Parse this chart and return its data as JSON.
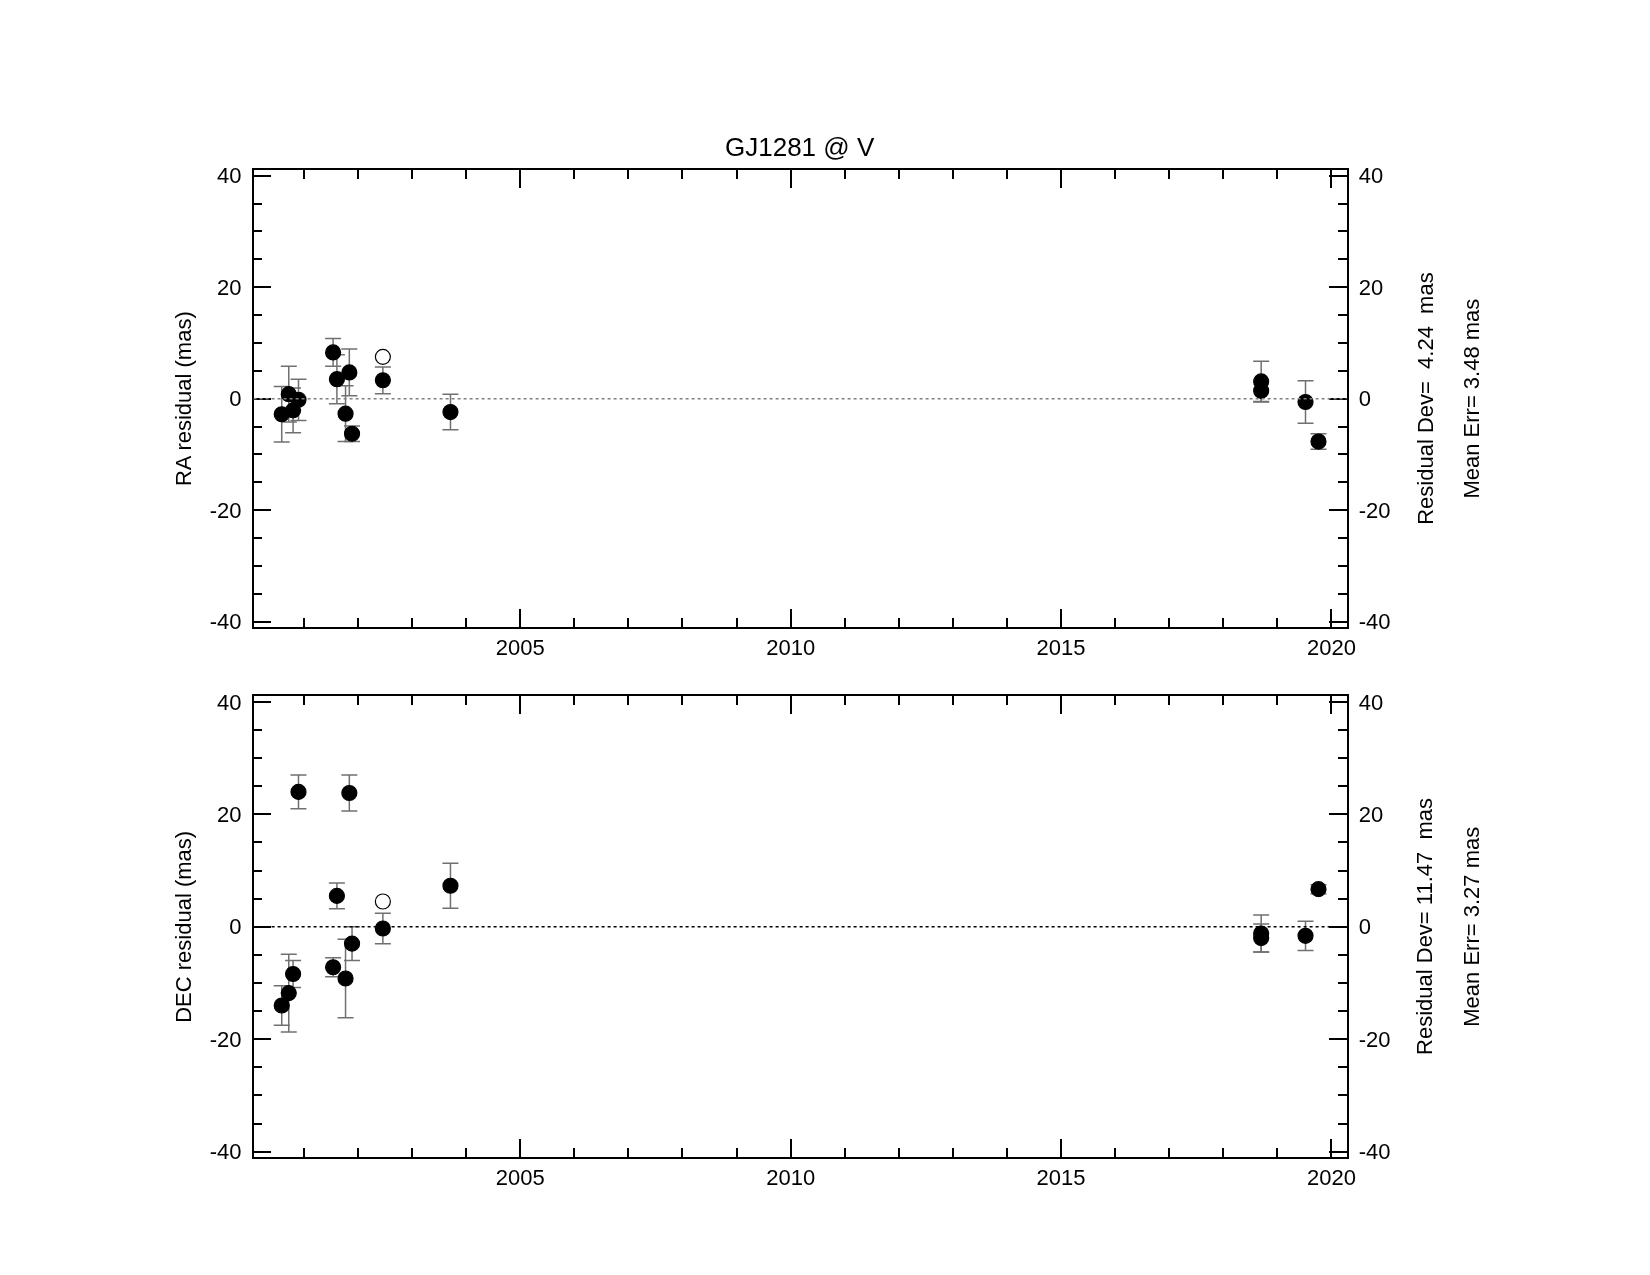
{
  "chart_data": [
    {
      "type": "scatter",
      "title": "GJ1281 @ V",
      "ylabel": "RA residual (mas)",
      "xlim": [
        2000.07,
        2020.28
      ],
      "xticks": [
        {
          "value": 2001,
          "label": null
        },
        {
          "value": 2002,
          "label": null
        },
        {
          "value": 2003,
          "label": null
        },
        {
          "value": 2004,
          "label": null
        },
        2005,
        {
          "value": 2006,
          "label": null
        },
        {
          "value": 2007,
          "label": null
        },
        {
          "value": 2008,
          "label": null
        },
        {
          "value": 2009,
          "label": null
        },
        2010,
        {
          "value": 2011,
          "label": null
        },
        {
          "value": 2012,
          "label": null
        },
        {
          "value": 2013,
          "label": null
        },
        {
          "value": 2014,
          "label": null
        },
        2015,
        {
          "value": 2016,
          "label": null
        },
        {
          "value": 2017,
          "label": null
        },
        {
          "value": 2018,
          "label": null
        },
        {
          "value": 2019,
          "label": null
        },
        2020
      ],
      "ylim": [
        -41,
        41
      ],
      "yticks": [
        -40,
        {
          "value": -35,
          "label": null
        },
        {
          "value": -30,
          "label": null
        },
        {
          "value": -25,
          "label": null
        },
        -20,
        {
          "value": -15,
          "label": null
        },
        {
          "value": -10,
          "label": null
        },
        {
          "value": -5,
          "label": null
        },
        0,
        {
          "value": 5,
          "label": null
        },
        {
          "value": 10,
          "label": null
        },
        {
          "value": 15,
          "label": null
        },
        20,
        {
          "value": 25,
          "label": null
        },
        {
          "value": 30,
          "label": null
        },
        {
          "value": 35,
          "label": null
        },
        40
      ],
      "y2lim": [
        -41,
        41
      ],
      "y2ticks": [
        -40,
        {
          "value": -35,
          "label": null
        },
        {
          "value": -30,
          "label": null
        },
        {
          "value": -25,
          "label": null
        },
        -20,
        {
          "value": -15,
          "label": null
        },
        {
          "value": -10,
          "label": null
        },
        {
          "value": -5,
          "label": null
        },
        0,
        {
          "value": 5,
          "label": null
        },
        {
          "value": 10,
          "label": null
        },
        {
          "value": 15,
          "label": null
        },
        20,
        {
          "value": 25,
          "label": null
        },
        {
          "value": 30,
          "label": null
        },
        {
          "value": 35,
          "label": null
        },
        40
      ],
      "ref_lines": [
        {
          "axis": "y",
          "value": 0,
          "label": null,
          "color": "#808080",
          "line_style": "dotted"
        }
      ],
      "annotations": [
        "Residual Dev=  4.24  mas",
        "Mean Err= 3.48 mas"
      ],
      "series": [
        {
          "color": "#000000",
          "marker": "circle",
          "x": [
            2000.59,
            2000.72,
            2000.8,
            2000.9,
            2001.54,
            2001.61,
            2001.77,
            2001.84,
            2001.89,
            2002.46,
            2003.71,
            2018.7,
            2018.7,
            2019.52,
            2019.76
          ],
          "values": [
            -2.8,
            0.8,
            -2.1,
            -0.2,
            8.3,
            3.5,
            -2.7,
            4.7,
            -6.3,
            3.3,
            -2.4,
            3.1,
            1.4,
            -0.6,
            -7.7
          ],
          "errors": [
            5,
            5,
            4,
            3.7,
            2.5,
            4.4,
            5,
            4.2,
            1.4,
            2.4,
            3.2,
            3.6,
            2,
            3.8,
            1.4
          ]
        },
        {
          "color": "#000000",
          "marker": "circle-open",
          "x": [
            2002.46
          ],
          "values": [
            7.5
          ]
        }
      ]
    },
    {
      "type": "scatter",
      "ylabel": "DEC residual (mas)",
      "xlim": [
        2000.07,
        2020.28
      ],
      "xticks": [
        {
          "value": 2001,
          "label": null
        },
        {
          "value": 2002,
          "label": null
        },
        {
          "value": 2003,
          "label": null
        },
        {
          "value": 2004,
          "label": null
        },
        2005,
        {
          "value": 2006,
          "label": null
        },
        {
          "value": 2007,
          "label": null
        },
        {
          "value": 2008,
          "label": null
        },
        {
          "value": 2009,
          "label": null
        },
        2010,
        {
          "value": 2011,
          "label": null
        },
        {
          "value": 2012,
          "label": null
        },
        {
          "value": 2013,
          "label": null
        },
        {
          "value": 2014,
          "label": null
        },
        2015,
        {
          "value": 2016,
          "label": null
        },
        {
          "value": 2017,
          "label": null
        },
        {
          "value": 2018,
          "label": null
        },
        {
          "value": 2019,
          "label": null
        },
        2020
      ],
      "ylim": [
        -41,
        41
      ],
      "yticks": [
        -40,
        {
          "value": -35,
          "label": null
        },
        {
          "value": -30,
          "label": null
        },
        {
          "value": -25,
          "label": null
        },
        -20,
        {
          "value": -15,
          "label": null
        },
        {
          "value": -10,
          "label": null
        },
        {
          "value": -5,
          "label": null
        },
        0,
        {
          "value": 5,
          "label": null
        },
        {
          "value": 10,
          "label": null
        },
        {
          "value": 15,
          "label": null
        },
        20,
        {
          "value": 25,
          "label": null
        },
        {
          "value": 30,
          "label": null
        },
        {
          "value": 35,
          "label": null
        },
        40
      ],
      "y2lim": [
        -41,
        41
      ],
      "y2ticks": [
        -40,
        {
          "value": -35,
          "label": null
        },
        {
          "value": -30,
          "label": null
        },
        {
          "value": -25,
          "label": null
        },
        -20,
        {
          "value": -15,
          "label": null
        },
        {
          "value": -10,
          "label": null
        },
        {
          "value": -5,
          "label": null
        },
        0,
        {
          "value": 5,
          "label": null
        },
        {
          "value": 10,
          "label": null
        },
        {
          "value": 15,
          "label": null
        },
        20,
        {
          "value": 25,
          "label": null
        },
        {
          "value": 30,
          "label": null
        },
        {
          "value": 35,
          "label": null
        },
        40
      ],
      "ref_lines": [
        {
          "axis": "y",
          "value": 0,
          "label": null,
          "color": "#000000",
          "line_style": "dotted"
        }
      ],
      "annotations": [
        "Residual Dev= 11.47  mas",
        "Mean Err= 3.27 mas"
      ],
      "series": [
        {
          "color": "#000000",
          "marker": "circle",
          "x": [
            2000.59,
            2000.72,
            2000.8,
            2000.9,
            2001.54,
            2001.61,
            2001.77,
            2001.84,
            2001.89,
            2002.46,
            2003.71,
            2018.7,
            2018.7,
            2019.52,
            2019.76
          ],
          "values": [
            -14.0,
            -11.8,
            -8.4,
            24.0,
            -7.2,
            5.5,
            -9.2,
            23.8,
            -3.0,
            -0.3,
            7.3,
            -1.2,
            -2.0,
            -1.6,
            6.7
          ],
          "errors": [
            3.5,
            6.9,
            2.4,
            3.0,
            1.7,
            2.3,
            7,
            3.2,
            3.0,
            2.7,
            4.0,
            3.3,
            2.5,
            2.6,
            0.8
          ]
        },
        {
          "color": "#000000",
          "marker": "circle-open",
          "x": [
            2002.46
          ],
          "values": [
            4.5
          ]
        }
      ]
    }
  ]
}
